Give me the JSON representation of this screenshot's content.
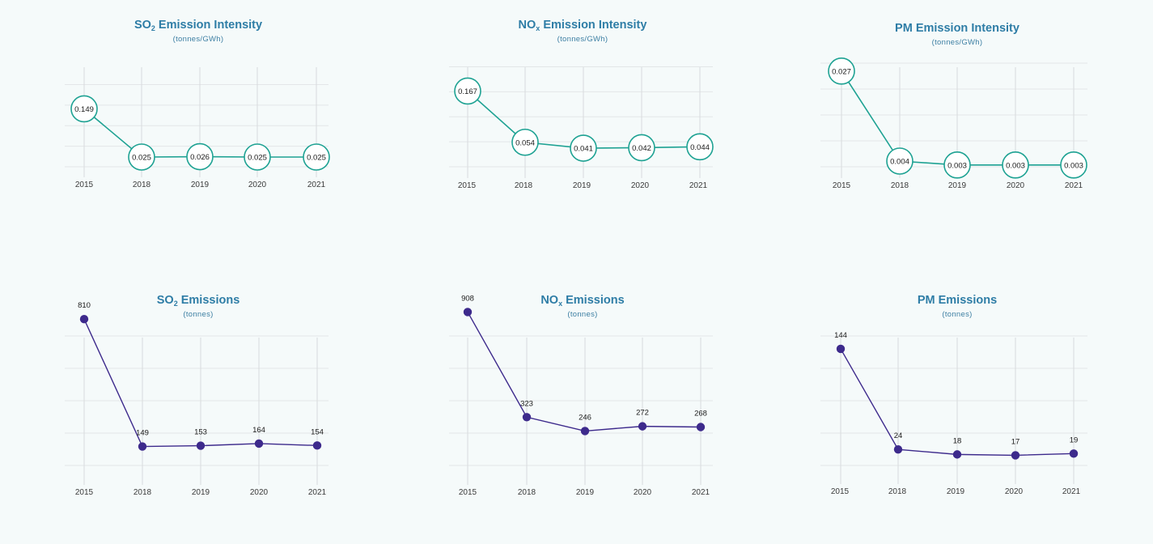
{
  "chart_data": [
    {
      "id": "so2-intensity",
      "type": "line",
      "style": "bubble",
      "title_main": "SO",
      "title_sub": "2",
      "title_rest": " Emission Intensity",
      "subtitle": "(tonnes/GWh)",
      "categories": [
        "2015",
        "2018",
        "2019",
        "2020",
        "2021"
      ],
      "values": [
        0.149,
        0.025,
        0.026,
        0.025,
        0.025
      ],
      "labels": [
        "0.149",
        "0.025",
        "0.026",
        "0.025",
        "0.025"
      ],
      "ylim": [
        0,
        0.2
      ],
      "grid": true,
      "color": "#1ea293"
    },
    {
      "id": "nox-intensity",
      "type": "line",
      "style": "bubble",
      "title_main": "NO",
      "title_sub": "x",
      "title_rest": " Emission Intensity",
      "subtitle": "(tonnes/GWh)",
      "categories": [
        "2015",
        "2018",
        "2019",
        "2020",
        "2021"
      ],
      "values": [
        0.167,
        0.054,
        0.041,
        0.042,
        0.044
      ],
      "labels": [
        "0.167",
        "0.054",
        "0.041",
        "0.042",
        "0.044"
      ],
      "ylim": [
        0,
        0.2
      ],
      "grid": true,
      "color": "#1ea293"
    },
    {
      "id": "pm-intensity",
      "type": "line",
      "style": "bubble",
      "title_main": "PM Emission Intensity",
      "title_sub": "",
      "title_rest": "",
      "subtitle": "(tonnes/GWh)",
      "categories": [
        "2015",
        "2018",
        "2019",
        "2020",
        "2021"
      ],
      "values": [
        0.027,
        0.004,
        0.003,
        0.003,
        0.003
      ],
      "labels": [
        "0.027",
        "0.004",
        "0.003",
        "0.003",
        "0.003"
      ],
      "ylim": [
        -0.002,
        0.028
      ],
      "grid": true,
      "color": "#1ea293"
    },
    {
      "id": "so2-emissions",
      "type": "line",
      "style": "dot",
      "title_main": "SO",
      "title_sub": "2",
      "title_rest": " Emissions",
      "subtitle": "(tonnes)",
      "categories": [
        "2015",
        "2018",
        "2019",
        "2020",
        "2021"
      ],
      "values": [
        810,
        149,
        153,
        164,
        154
      ],
      "labels": [
        "810",
        "149",
        "153",
        "164",
        "154"
      ],
      "ylim": [
        0,
        1000
      ],
      "grid": true,
      "color": "#3d2a8c"
    },
    {
      "id": "nox-emissions",
      "type": "line",
      "style": "dot",
      "title_main": "NO",
      "title_sub": "x",
      "title_rest": " Emissions",
      "subtitle": "(tonnes)",
      "categories": [
        "2015",
        "2018",
        "2019",
        "2020",
        "2021"
      ],
      "values": [
        908,
        323,
        246,
        272,
        268
      ],
      "labels": [
        "908",
        "323",
        "246",
        "272",
        "268"
      ],
      "ylim": [
        0,
        1000
      ],
      "grid": true,
      "color": "#3d2a8c"
    },
    {
      "id": "pm-emissions",
      "type": "line",
      "style": "dot",
      "title_main": "PM Emissions",
      "title_sub": "",
      "title_rest": "",
      "subtitle": "(tonnes)",
      "categories": [
        "2015",
        "2018",
        "2019",
        "2020",
        "2021"
      ],
      "values": [
        144,
        24,
        18,
        17,
        19
      ],
      "labels": [
        "144",
        "24",
        "18",
        "17",
        "19"
      ],
      "ylim": [
        0,
        200
      ],
      "grid": true,
      "color": "#3d2a8c"
    }
  ]
}
